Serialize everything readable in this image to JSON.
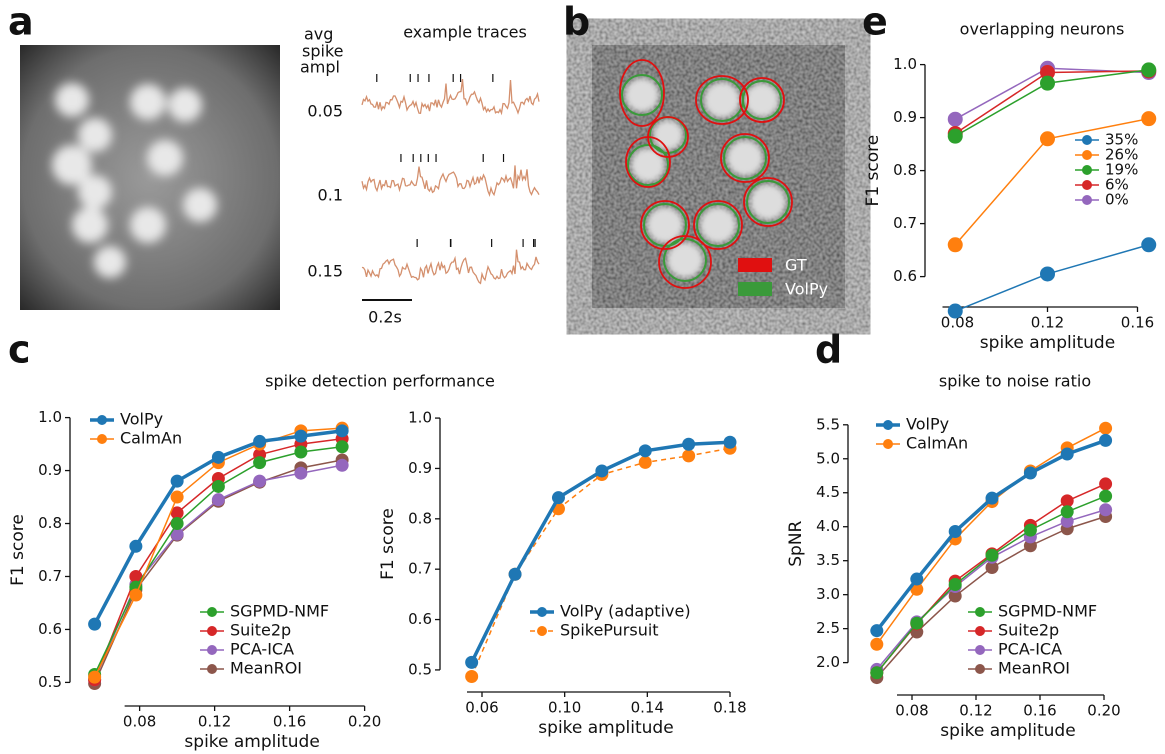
{
  "panels": [
    "a",
    "b",
    "c",
    "d",
    "e"
  ],
  "panel_a": {
    "row_header": [
      "avg",
      "spike",
      "ampl"
    ],
    "title": "example traces",
    "amplitudes": [
      "0.05",
      "0.1",
      "0.15"
    ],
    "scale_bar": "0.2s"
  },
  "panel_b": {
    "legend": [
      "GT",
      "VolPy"
    ]
  },
  "chart_data": [
    {
      "type": "line",
      "title": "spike detection performance",
      "xlabel": "spike amplitude",
      "ylabel": "F1 score",
      "x": [
        0.056,
        0.078,
        0.1,
        0.122,
        0.144,
        0.166,
        0.188
      ],
      "xlim": [
        0.045,
        0.205
      ],
      "ylim": [
        0.48,
        1.02
      ],
      "xticks": [
        0.08,
        0.12,
        0.16,
        {
          "value": 0.2,
          "label": "0.20"
        }
      ],
      "yticks": [
        0.5,
        0.6,
        0.7,
        0.8,
        0.9,
        {
          "value": 1.0,
          "label": "1.0"
        }
      ],
      "series": [
        {
          "name": "VolPy",
          "color": "#1f77b4",
          "values": [
            0.61,
            0.757,
            0.88,
            0.925,
            0.955,
            0.965,
            0.975
          ]
        },
        {
          "name": "CalmAn",
          "color": "#ff7f0e",
          "values": [
            0.51,
            0.665,
            0.85,
            0.915,
            0.95,
            0.975,
            0.98
          ]
        },
        {
          "name": "SGPMD-NMF",
          "color": "#2ca02c",
          "values": [
            0.515,
            0.68,
            0.8,
            0.87,
            0.915,
            0.935,
            0.945
          ]
        },
        {
          "name": "Suite2p",
          "color": "#d62728",
          "values": [
            0.505,
            0.7,
            0.82,
            0.885,
            0.93,
            0.95,
            0.96
          ]
        },
        {
          "name": "PCA-ICA",
          "color": "#9467bd",
          "values": [
            0.505,
            0.685,
            0.78,
            0.845,
            0.88,
            0.895,
            0.91
          ]
        },
        {
          "name": "MeanROI",
          "color": "#8c564b",
          "values": [
            0.498,
            0.675,
            0.778,
            0.842,
            0.878,
            0.905,
            0.92
          ]
        }
      ]
    },
    {
      "type": "line",
      "xlabel": "spike amplitude",
      "ylabel": "F1 score",
      "x": [
        0.055,
        0.076,
        0.097,
        0.118,
        0.139,
        0.16,
        0.18
      ],
      "xlim": [
        0.045,
        0.195
      ],
      "ylim": [
        0.48,
        1.02
      ],
      "xticks": [
        0.06,
        {
          "value": 0.1,
          "label": "0.10"
        },
        0.14,
        0.18
      ],
      "yticks": [
        0.5,
        0.6,
        0.7,
        0.8,
        0.9,
        {
          "value": 1.0,
          "label": "1.0"
        }
      ],
      "series": [
        {
          "name": "VolPy (adaptive)",
          "color": "#1f77b4",
          "values": [
            0.515,
            0.69,
            0.842,
            0.895,
            0.935,
            0.948,
            0.952
          ]
        },
        {
          "name": "SpikePursuit",
          "color": "#ff7f0e",
          "linestyle": "dashed",
          "values": [
            0.487,
            0.69,
            0.82,
            0.888,
            0.912,
            0.925,
            0.94
          ]
        }
      ]
    },
    {
      "type": "line",
      "title": "spike to noise ratio",
      "xlabel": "spike amplitude",
      "ylabel": "SpNR",
      "x": [
        0.058,
        0.083,
        0.107,
        0.13,
        0.154,
        0.177,
        0.201
      ],
      "xlim": [
        0.045,
        0.21
      ],
      "ylim": [
        1.7,
        5.6
      ],
      "xticks": [
        0.08,
        0.12,
        0.16,
        {
          "value": 0.2,
          "label": "0.20"
        }
      ],
      "yticks": [
        {
          "value": 2.0,
          "label": "2.0"
        },
        2.5,
        {
          "value": 3.0,
          "label": "3.0"
        },
        3.5,
        {
          "value": 4.0,
          "label": "4.0"
        },
        4.5,
        {
          "value": 5.0,
          "label": "5.0"
        },
        5.5
      ],
      "series": [
        {
          "name": "VolPy",
          "color": "#1f77b4",
          "values": [
            2.47,
            3.23,
            3.93,
            4.42,
            4.79,
            5.07,
            5.27
          ]
        },
        {
          "name": "CalmAn",
          "color": "#ff7f0e",
          "values": [
            2.27,
            3.08,
            3.82,
            4.37,
            4.82,
            5.16,
            5.45
          ]
        },
        {
          "name": "SGPMD-NMF",
          "color": "#2ca02c",
          "values": [
            1.85,
            2.58,
            3.15,
            3.58,
            3.95,
            4.22,
            4.45
          ]
        },
        {
          "name": "Suite2p",
          "color": "#d62728",
          "values": [
            1.85,
            2.57,
            3.2,
            3.6,
            4.02,
            4.38,
            4.63
          ]
        },
        {
          "name": "PCA-ICA",
          "color": "#9467bd",
          "values": [
            1.9,
            2.6,
            3.12,
            3.55,
            3.85,
            4.08,
            4.25
          ]
        },
        {
          "name": "MeanROI",
          "color": "#8c564b",
          "values": [
            1.78,
            2.45,
            2.98,
            3.4,
            3.72,
            3.97,
            4.15
          ]
        }
      ]
    },
    {
      "type": "line",
      "title": "overlapping neurons",
      "xlabel": "spike amplitude",
      "ylabel": "F1 score",
      "x": [
        0.079,
        0.12,
        0.165
      ],
      "xlim": [
        0.07,
        0.17
      ],
      "ylim": [
        0.52,
        1.02
      ],
      "xticks": [
        0.08,
        0.12,
        0.16
      ],
      "yticks": [
        0.6,
        0.7,
        0.8,
        0.9,
        {
          "value": 1.0,
          "label": "1.0"
        }
      ],
      "series": [
        {
          "name": "35%",
          "color": "#1f77b4",
          "values": [
            0.535,
            0.605,
            0.66
          ]
        },
        {
          "name": "26%",
          "color": "#ff7f0e",
          "values": [
            0.66,
            0.86,
            0.898
          ]
        },
        {
          "name": "19%",
          "color": "#2ca02c",
          "values": [
            0.865,
            0.965,
            0.99
          ]
        },
        {
          "name": "6%",
          "color": "#d62728",
          "values": [
            0.87,
            0.985,
            0.988
          ]
        },
        {
          "name": "0%",
          "color": "#9467bd",
          "values": [
            0.897,
            0.993,
            0.985
          ]
        }
      ]
    }
  ]
}
